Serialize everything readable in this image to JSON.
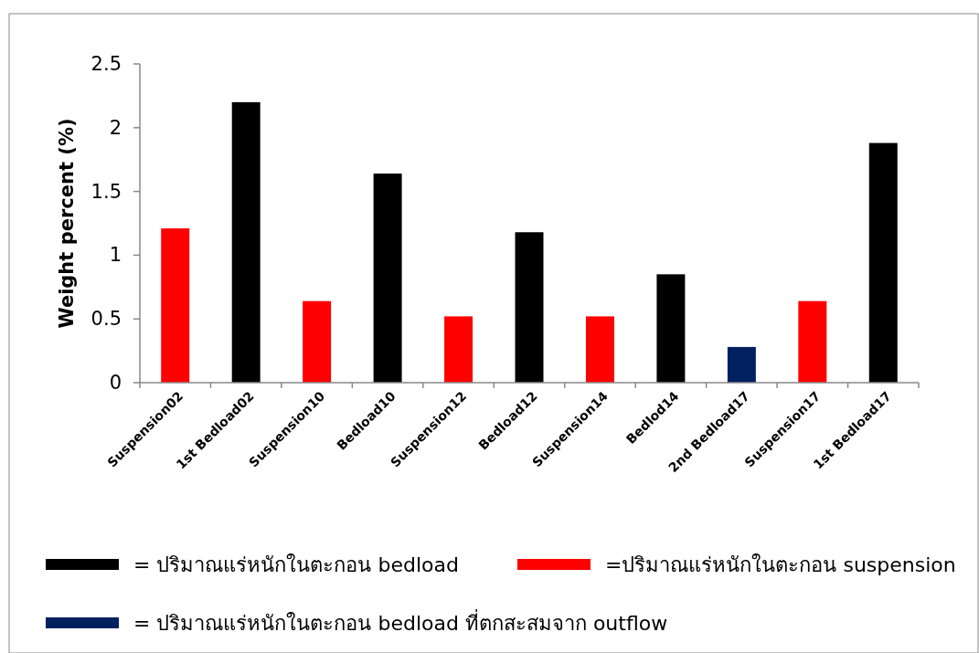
{
  "chart_data": {
    "type": "bar",
    "ylabel": "Weight percent (%)",
    "categories": [
      "Suspension02",
      "1st Bedload02",
      "Suspension10",
      "Bedload10",
      "Suspension12",
      "Bedload12",
      "Suspension14",
      "Bedlod14",
      "2nd Bedload17",
      "Suspension17",
      "1st Bedload17"
    ],
    "stacked": true,
    "series": [
      {
        "name": "= ปริมาณแร่หนักในตะกอน bedload",
        "color": "#000000",
        "values": [
          null,
          2.2,
          null,
          1.64,
          null,
          1.18,
          null,
          0.85,
          null,
          null,
          1.88
        ]
      },
      {
        "name": "=ปริมาณแร่หนักในตะกอน suspension",
        "color": "#ff0000",
        "values": [
          1.21,
          null,
          0.64,
          null,
          0.52,
          null,
          0.52,
          null,
          null,
          0.64,
          null
        ]
      },
      {
        "name": "= ปริมาณแร่หนักในตะกอน bedload ที่ตกสะสมจาก outflow",
        "color": "#002060",
        "values": [
          null,
          null,
          null,
          null,
          null,
          null,
          null,
          null,
          0.28,
          null,
          null
        ]
      }
    ],
    "ylim": [
      0,
      2.5
    ],
    "yticks": [
      0,
      0.5,
      1,
      1.5,
      2,
      2.5
    ],
    "grid": false,
    "legend": "bottom"
  }
}
